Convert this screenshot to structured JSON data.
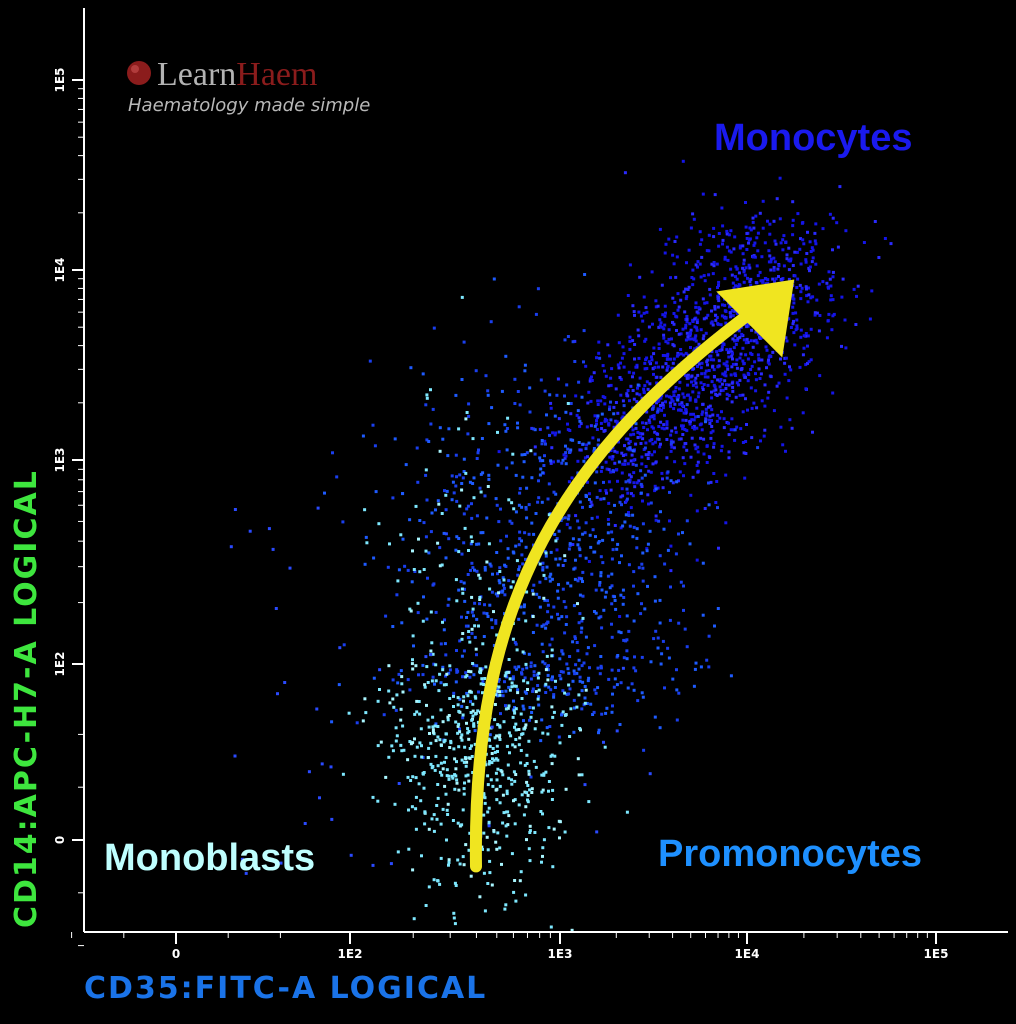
{
  "branding": {
    "name_part1": "Learn",
    "name_part2": "Haem",
    "tagline": "Haematology made simple",
    "colors": {
      "part1": "#b3b3b3",
      "part2": "#8b1c1c",
      "tagline": "#b8b8b8",
      "dot": "#8b1c1c"
    }
  },
  "chart_data": {
    "type": "scatter",
    "title": "",
    "xlabel": "CD35:FITC-A LOGICAL",
    "ylabel": "CD14:APC-H7-A LOGICAL",
    "x_scale": "logicle",
    "y_scale": "logicle",
    "x_ticks": [
      "0",
      "1E2",
      "1E3",
      "1E4",
      "1E5"
    ],
    "y_ticks": [
      "0",
      "1E2",
      "1E3",
      "1E4",
      "1E5"
    ],
    "x_range": [
      -100,
      100000
    ],
    "y_range": [
      -100,
      100000
    ],
    "grid": false,
    "legend": "none",
    "populations": [
      {
        "name": "Monoblasts",
        "color": "#7ee8ff",
        "center_log": [
          2.6,
          1.8
        ]
      },
      {
        "name": "Promonocytes",
        "color": "#1e90ff",
        "center_log": [
          3.2,
          2.8
        ]
      },
      {
        "name": "Monocytes",
        "color": "#1a1aff",
        "center_log": [
          4.1,
          4.0
        ]
      }
    ],
    "annotations": [
      {
        "text": "Monoblasts",
        "color": "#bfffff",
        "anchor": "bottom-left"
      },
      {
        "text": "Promonocytes",
        "color": "#1e90ff",
        "anchor": "bottom-right"
      },
      {
        "text": "Monocytes",
        "color": "#1a1aee",
        "anchor": "top-right"
      }
    ],
    "arrow": {
      "color": "#f0e520",
      "from_log": [
        2.6,
        -0.3
      ],
      "to_log": [
        4.25,
        3.95
      ]
    }
  },
  "colors": {
    "background": "#000000",
    "axis": "#ffffff",
    "xlabel": "#1a73e8",
    "ylabel": "#3ee63e"
  }
}
